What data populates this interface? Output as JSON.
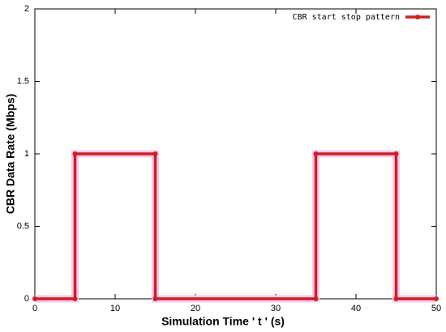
{
  "chart_data": {
    "type": "line",
    "xlabel": "Simulation Time ' t ' (s)",
    "ylabel": "CBR Data Rate (Mbps)",
    "x": [
      0,
      5,
      5,
      15,
      15,
      35,
      35,
      45,
      45,
      50
    ],
    "series": [
      {
        "name": "CBR start stop pattern",
        "color": "#cc2020",
        "values": [
          0,
          0,
          1,
          1,
          0,
          0,
          1,
          1,
          0,
          0
        ]
      }
    ],
    "xlim": [
      0,
      50
    ],
    "xticks": [
      0,
      10,
      20,
      30,
      40,
      50
    ],
    "ylim": [
      0,
      2
    ],
    "yticks": [
      0,
      0.5,
      1,
      1.5,
      2
    ],
    "grid": false,
    "legend": "upper right"
  }
}
